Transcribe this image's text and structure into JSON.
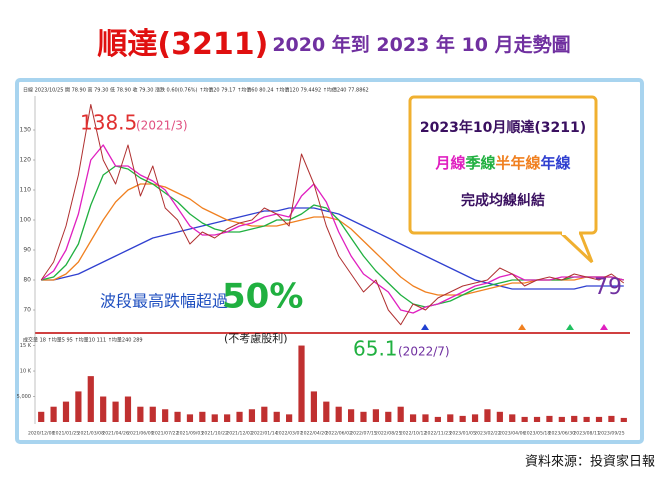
{
  "title": {
    "main": "順達(3211)",
    "sub": "2020 年到 2023 年 10 月走勢圖"
  },
  "source": "資料來源：投資家日報",
  "chart_data": {
    "type": "line",
    "header": "日線 2023/10/25 開 78.90 高 79.30 低 78.90 收 79.30 漲跌 0.60(0.76%) ↑均價20 79.17 ↑均價60 80.24 ↑均價120 79.4492 ↑均價240 77.8862",
    "volume_header": "成交量 18 ↑均量5 95 ↑均量10 111 ↑均量240 289",
    "categories": [
      "2020/12/08",
      null,
      "2021/01/25",
      null,
      "2021/03/08",
      null,
      "2021/04/26",
      null,
      "2021/06/09",
      null,
      "2021/07/22",
      null,
      "2021/09/03",
      null,
      "2021/10/22",
      null,
      "2021/12/02",
      null,
      "2022/01/14",
      null,
      "2022/03/07",
      null,
      "2022/04/20",
      null,
      "2022/06/02",
      null,
      "2022/07/15",
      null,
      "2022/08/25",
      null,
      "2022/10/12",
      null,
      "2022/11/23",
      null,
      "2023/01/05",
      null,
      "2023/02/22",
      null,
      "2023/04/06",
      null,
      "2023/05/18",
      null,
      "2023/06/30",
      null,
      "2023/08/11",
      null,
      "2023/09/25",
      null
    ],
    "values": [
      80,
      86,
      98,
      115,
      138.5,
      120,
      112,
      125,
      108,
      118,
      104,
      100,
      92,
      96,
      94,
      97,
      99,
      100,
      104,
      102,
      98,
      122,
      112,
      98,
      88,
      82,
      76,
      80,
      70,
      65.1,
      72,
      70,
      74,
      76,
      78,
      79,
      80,
      84,
      82,
      78,
      80,
      81,
      80,
      82,
      81,
      80,
      82,
      79
    ],
    "color": "#b03030",
    "series": [
      {
        "name": "月線",
        "color": "#e020c0",
        "values": [
          80,
          83,
          90,
          102,
          120,
          125,
          118,
          118,
          115,
          113,
          110,
          104,
          98,
          95,
          95,
          96,
          98,
          99,
          101,
          102,
          101,
          108,
          112,
          106,
          96,
          88,
          82,
          79,
          76,
          70,
          69,
          71,
          72,
          74,
          76,
          78,
          79,
          81,
          82,
          80,
          80,
          80,
          81,
          81,
          81,
          81,
          81,
          80
        ]
      },
      {
        "name": "季線",
        "color": "#20b040",
        "values": [
          80,
          81,
          85,
          92,
          105,
          115,
          118,
          117,
          114,
          112,
          109,
          106,
          102,
          99,
          97,
          96,
          96,
          97,
          98,
          100,
          100,
          102,
          105,
          104,
          100,
          94,
          88,
          83,
          79,
          75,
          72,
          71,
          72,
          73,
          75,
          77,
          78,
          79,
          80,
          80,
          80,
          80,
          80,
          81,
          81,
          81,
          81,
          80
        ]
      },
      {
        "name": "半年線",
        "color": "#f08020",
        "values": [
          80,
          80,
          82,
          86,
          93,
          100,
          106,
          110,
          112,
          112,
          111,
          109,
          107,
          104,
          102,
          100,
          99,
          98,
          98,
          98,
          99,
          100,
          101,
          101,
          100,
          97,
          93,
          89,
          85,
          81,
          78,
          76,
          75,
          75,
          75,
          76,
          77,
          78,
          79,
          79,
          80,
          80,
          80,
          80,
          81,
          81,
          81,
          80
        ]
      },
      {
        "name": "年線",
        "color": "#3040d0",
        "values": [
          80,
          80,
          81,
          82,
          84,
          86,
          88,
          90,
          92,
          94,
          95,
          96,
          97,
          98,
          99,
          100,
          101,
          102,
          103,
          103,
          104,
          104,
          104,
          103,
          102,
          100,
          98,
          96,
          94,
          92,
          90,
          88,
          86,
          84,
          82,
          80,
          79,
          78,
          77,
          77,
          77,
          77,
          77,
          77,
          78,
          78,
          78,
          78
        ]
      }
    ],
    "ylim": [
      64,
      140
    ],
    "yticks": [
      70,
      80,
      90,
      100,
      110,
      120,
      130
    ],
    "volume": {
      "type": "bar",
      "color": "#c03030",
      "values": [
        2000,
        3000,
        4000,
        6000,
        9000,
        5000,
        4000,
        5000,
        3000,
        3000,
        2500,
        2000,
        1500,
        2000,
        1500,
        1500,
        2000,
        2500,
        3000,
        2000,
        1500,
        15000,
        6000,
        4000,
        3000,
        2500,
        2000,
        2500,
        2000,
        3000,
        1500,
        1500,
        1000,
        1500,
        1200,
        1500,
        2500,
        2000,
        1500,
        1000,
        1000,
        1200,
        1000,
        1200,
        1000,
        1000,
        1200,
        800
      ],
      "ylim": [
        0,
        15500
      ],
      "yticks": [
        {
          "value": 5000,
          "label": "5,000"
        },
        {
          "value": 10000,
          "label": "10 K"
        },
        {
          "value": 15000,
          "label": "15 K"
        }
      ]
    },
    "annotations": {
      "peak": "138.5",
      "peak_date": "(2021/3)",
      "low": "65.1",
      "low_date": "(2022/7)",
      "last": "79",
      "drop_text": "波段最高跌幅超過",
      "drop_pct": "50%",
      "note": "(不考慮股利)"
    },
    "callout": {
      "title": "2023年10月順達(3211)",
      "line3": "完成均線糾結"
    }
  }
}
